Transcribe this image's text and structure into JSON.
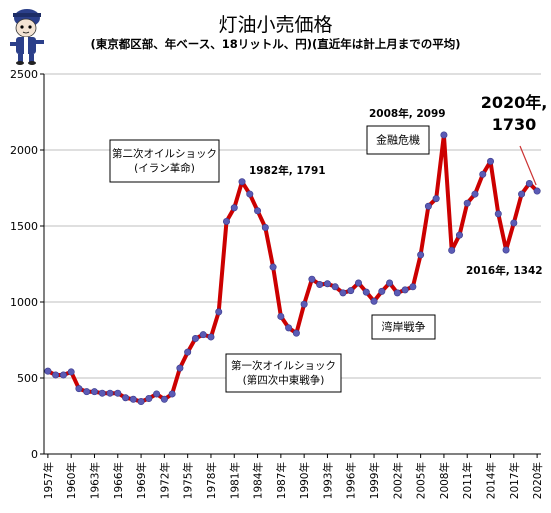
{
  "chart_data": {
    "type": "line",
    "title": "灯油小売価格",
    "subtitle": "(東京都区部、年ベース、18リットル、円)(直近年は計上月までの平均)",
    "xlabel": "",
    "ylabel": "",
    "ylim": [
      0,
      2500
    ],
    "yticks": [
      0,
      500,
      1000,
      1500,
      2000,
      2500
    ],
    "xtick_labels": [
      "1957年",
      "1960年",
      "1963年",
      "1966年",
      "1969年",
      "1972年",
      "1975年",
      "1978年",
      "1981年",
      "1984年",
      "1987年",
      "1990年",
      "1993年",
      "1996年",
      "1999年",
      "2002年",
      "2005年",
      "2008年",
      "2011年",
      "2014年",
      "2017年",
      "2020年"
    ],
    "grid": true,
    "colors": {
      "line": "#cc0000",
      "marker": "#5b5bb5",
      "grid": "#bfbfbf",
      "text": "#000000"
    },
    "x": [
      1957,
      1958,
      1959,
      1960,
      1961,
      1962,
      1963,
      1964,
      1965,
      1966,
      1967,
      1968,
      1969,
      1970,
      1971,
      1972,
      1973,
      1974,
      1975,
      1976,
      1977,
      1978,
      1979,
      1980,
      1981,
      1982,
      1983,
      1984,
      1985,
      1986,
      1987,
      1988,
      1989,
      1990,
      1991,
      1992,
      1993,
      1994,
      1995,
      1996,
      1997,
      1998,
      1999,
      2000,
      2001,
      2002,
      2003,
      2004,
      2005,
      2006,
      2007,
      2008,
      2009,
      2010,
      2011,
      2012,
      2013,
      2014,
      2015,
      2016,
      2017,
      2018,
      2019,
      2020
    ],
    "values": [
      545,
      520,
      520,
      540,
      430,
      410,
      410,
      400,
      400,
      400,
      370,
      360,
      345,
      365,
      395,
      360,
      395,
      565,
      670,
      760,
      785,
      770,
      935,
      1530,
      1620,
      1791,
      1710,
      1600,
      1490,
      1230,
      905,
      830,
      795,
      985,
      1150,
      1115,
      1120,
      1100,
      1060,
      1075,
      1125,
      1065,
      1005,
      1070,
      1125,
      1060,
      1080,
      1100,
      1310,
      1630,
      1680,
      2099,
      1340,
      1440,
      1650,
      1710,
      1840,
      1925,
      1580,
      1342,
      1520,
      1710,
      1780,
      1730
    ],
    "annotations": [
      {
        "id": "oil2",
        "lines": [
          "第二次オイルショック",
          "(イラン革命)"
        ],
        "box": true
      },
      {
        "id": "oil1",
        "lines": [
          "第一次オイルショック",
          "(第四次中東戦争)"
        ],
        "box": true
      },
      {
        "id": "fin",
        "lines": [
          "金融危機"
        ],
        "box": true
      },
      {
        "id": "gulf",
        "lines": [
          "湾岸戦争"
        ],
        "box": true
      },
      {
        "id": "p1982",
        "lines": [
          "1982年, 1791"
        ],
        "box": false
      },
      {
        "id": "p2008",
        "lines": [
          "2008年, 2099"
        ],
        "box": false
      },
      {
        "id": "p2016",
        "lines": [
          "2016年, 1342"
        ],
        "box": false
      },
      {
        "id": "p2020",
        "lines": [
          "2020年,",
          "1730"
        ],
        "box": false
      }
    ]
  }
}
